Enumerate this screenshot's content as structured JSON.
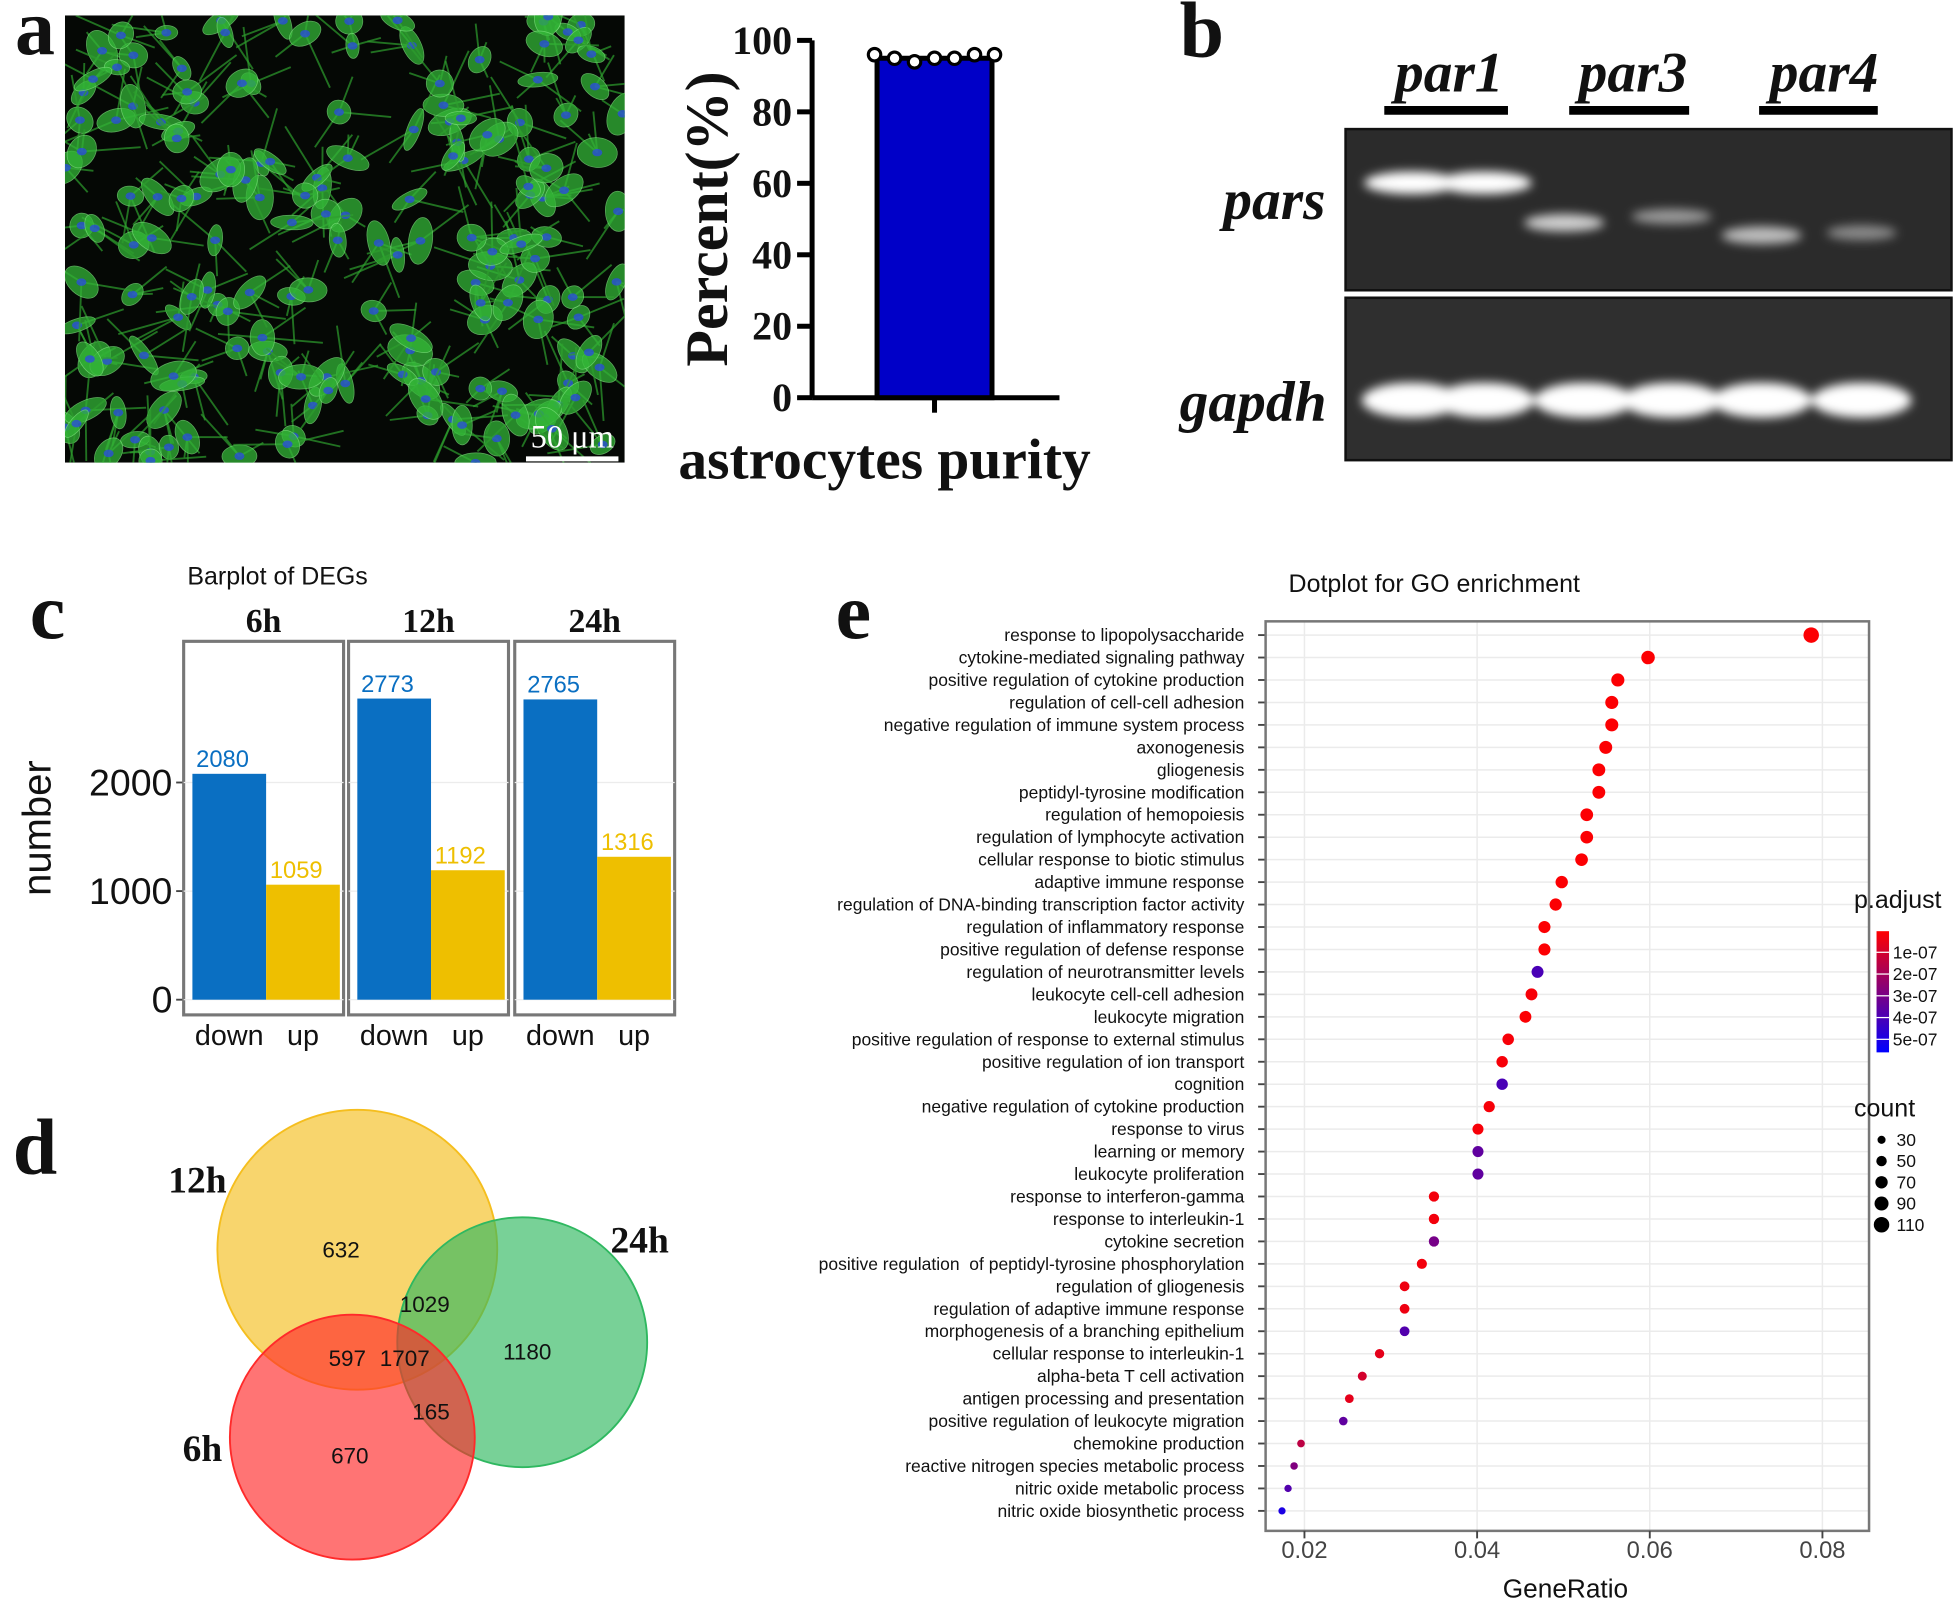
{
  "panel_labels": [
    "a",
    "b",
    "c",
    "d",
    "e"
  ],
  "micrograph": {
    "scale_bar": "50 μm"
  },
  "gel": {
    "lanes": [
      "par1",
      "par3",
      "par4"
    ],
    "rows": [
      "pars",
      "gapdh"
    ]
  },
  "chart_data": [
    {
      "type": "bar",
      "ylabel": "Percent(%)",
      "categories": [
        "astrocytes purity"
      ],
      "values": [
        95
      ],
      "points": [
        96,
        95,
        94,
        95,
        95,
        96,
        96
      ],
      "color": "#0000c8",
      "ylim": [
        0,
        100
      ],
      "yticks": [
        0,
        20,
        40,
        60,
        80,
        100
      ]
    },
    {
      "type": "faceted_bar",
      "title": "Barplot of DEGs",
      "ylabel": "number",
      "categories": [
        "down",
        "up"
      ],
      "colors": [
        "#0a6fc2",
        "#eebf00"
      ],
      "facets": [
        {
          "name": "6h",
          "values": [
            2080,
            1059
          ]
        },
        {
          "name": "12h",
          "values": [
            2773,
            1192
          ]
        },
        {
          "name": "24h",
          "values": [
            2765,
            1316
          ]
        }
      ],
      "ylim": [
        -140,
        3300
      ],
      "yticks": [
        0,
        1000,
        2000
      ],
      "grid": true
    },
    {
      "type": "venn",
      "sets": [
        {
          "name": "12h",
          "color": "#f5be1e"
        },
        {
          "name": "24h",
          "color": "#2fb860"
        },
        {
          "name": "6h",
          "color": "#ff2a2a"
        }
      ],
      "region_values": [
        632,
        1029,
        1180,
        597,
        1707,
        165,
        670
      ]
    },
    {
      "type": "dot",
      "title": "Dotplot for GO enrichment",
      "xlabel": "GeneRatio",
      "categories": [
        "response to lipopolysaccharide",
        "cytokine-mediated signaling pathway",
        "positive regulation of cytokine production",
        "regulation of cell-cell adhesion",
        "negative regulation of immune system process",
        "axonogenesis",
        "gliogenesis",
        "peptidyl-tyrosine modification",
        "regulation of hemopoiesis",
        "regulation of lymphocyte activation",
        "cellular response to biotic stimulus",
        "adaptive immune response",
        "regulation of DNA-binding transcription factor activity",
        "regulation of inflammatory response",
        "positive regulation of defense response",
        "regulation of neurotransmitter levels",
        "leukocyte cell-cell adhesion",
        "leukocyte migration",
        "positive regulation of response to external stimulus",
        "positive regulation of ion transport",
        "cognition",
        "negative regulation of cytokine production",
        "response to virus",
        "learning or memory",
        "leukocyte proliferation",
        "response to interferon-gamma",
        "response to interleukin-1",
        "cytokine secretion",
        "positive regulation  of peptidyl-tyrosine phosphorylation",
        "regulation of gliogenesis",
        "regulation of adaptive immune response",
        "morphogenesis of a branching epithelium",
        "cellular response to interleukin-1",
        "alpha-beta T cell activation",
        "antigen processing and presentation",
        "positive regulation of leukocyte migration",
        "chemokine production",
        "reactive nitrogen species metabolic process",
        "nitric oxide metabolic process",
        "nitric oxide biosynthetic process"
      ],
      "values": [
        0.0787,
        0.0598,
        0.0563,
        0.0556,
        0.0556,
        0.0549,
        0.0541,
        0.0541,
        0.0527,
        0.0527,
        0.0521,
        0.0498,
        0.0491,
        0.0478,
        0.0478,
        0.047,
        0.0463,
        0.0456,
        0.0436,
        0.0429,
        0.0429,
        0.0414,
        0.0401,
        0.0401,
        0.0401,
        0.035,
        0.035,
        0.035,
        0.0336,
        0.0316,
        0.0316,
        0.0316,
        0.0287,
        0.0267,
        0.0252,
        0.0245,
        0.0196,
        0.0188,
        0.0181,
        0.0174
      ],
      "counts": [
        110,
        84,
        79,
        78,
        78,
        77,
        76,
        76,
        74,
        74,
        73,
        70,
        69,
        67,
        67,
        66,
        65,
        64,
        61,
        60,
        60,
        58,
        56,
        56,
        56,
        49,
        49,
        49,
        47,
        44,
        44,
        44,
        40,
        37,
        35,
        34,
        27,
        26,
        25,
        24
      ],
      "p_adjust": [
        1e-08,
        1e-08,
        1e-08,
        1e-08,
        1e-08,
        1e-08,
        1e-08,
        1e-08,
        1e-08,
        1e-08,
        1e-08,
        1e-08,
        1e-08,
        1e-08,
        1e-08,
        4e-07,
        2e-08,
        1e-08,
        2e-08,
        2e-08,
        4e-07,
        2e-08,
        2e-08,
        3.5e-07,
        3.5e-07,
        3e-08,
        3e-08,
        3e-07,
        3e-08,
        4e-08,
        4e-08,
        3.8e-07,
        6e-08,
        1e-07,
        6e-08,
        3.5e-07,
        1.5e-07,
        2.8e-07,
        3.8e-07,
        5e-07
      ],
      "xlim": [
        0.0155,
        0.0854
      ],
      "xticks": [
        0.02,
        0.04,
        0.06,
        0.08
      ],
      "grid": true,
      "color_title": "p.adjust",
      "color_scale": [
        "#ff0000",
        "#0000ff"
      ],
      "clim": [
        3e-09,
        5.6e-07
      ],
      "color_ticks": [
        {
          "value": 1e-07,
          "label": "1e-07"
        },
        {
          "value": 2e-07,
          "label": "2e-07"
        },
        {
          "value": 3e-07,
          "label": "3e-07"
        },
        {
          "value": 4e-07,
          "label": "4e-07"
        },
        {
          "value": 5e-07,
          "label": "5e-07"
        }
      ],
      "size_title": "count",
      "size_ticks": [
        30,
        50,
        70,
        90,
        110
      ]
    }
  ]
}
